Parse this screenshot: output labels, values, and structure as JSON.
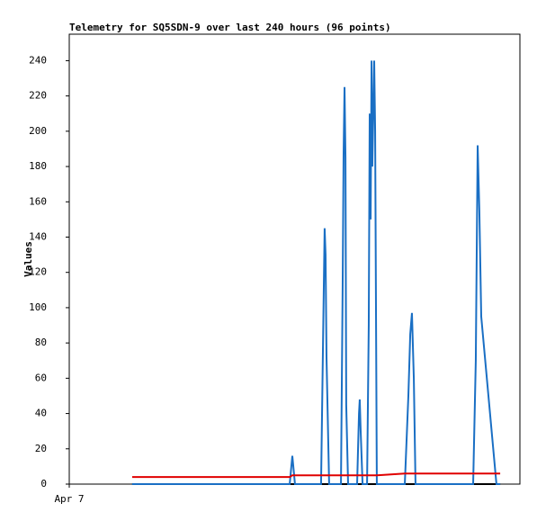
{
  "chart_data": {
    "type": "line",
    "title": "Telemetry for SQ5SDN-9 over last 240 hours (96 points)",
    "ylabel": "Values",
    "x": [
      33.5,
      117.4,
      118.8,
      120.2,
      134.1,
      136.0,
      136.5,
      137.0,
      138.4,
      144.7,
      145.6,
      146.1,
      146.6,
      147.1,
      147.5,
      148.5,
      153.3,
      154.3,
      154.7,
      155.2,
      156.2,
      158.6,
      159.5,
      160.0,
      160.5,
      161.0,
      161.4,
      162.4,
      162.9,
      163.8,
      178.7,
      180.6,
      181.6,
      182.5,
      183.5,
      184.4,
      215.1,
      216.5,
      217.5,
      218.4,
      219.4,
      227.5,
      229.5
    ],
    "series": [
      {
        "color": "#000000",
        "values": [
          0,
          0,
          0,
          0,
          0,
          0,
          0,
          0,
          0,
          0,
          0,
          0,
          0,
          0,
          0,
          0,
          0,
          0,
          0,
          0,
          0,
          0,
          0,
          0,
          0,
          0,
          0,
          0,
          0,
          0,
          0,
          0,
          0,
          0,
          0,
          0,
          0,
          0,
          0,
          0,
          0,
          0,
          0
        ]
      },
      {
        "color": "#1a6fc4",
        "values": [
          0,
          0,
          16,
          0,
          0,
          145,
          130,
          72,
          0,
          0,
          112,
          187,
          225,
          185,
          45,
          0,
          0,
          40,
          48,
          30,
          0,
          0,
          90,
          210,
          150,
          240,
          180,
          240,
          200,
          0,
          0,
          50,
          85,
          97,
          60,
          0,
          0,
          70,
          192,
          155,
          95,
          0,
          0
        ]
      },
      {
        "color": "#e00000",
        "values": [
          4,
          4,
          5,
          5,
          5,
          5,
          5,
          5,
          5,
          5,
          5,
          5,
          5,
          5,
          5,
          5,
          5,
          5,
          5,
          5,
          5,
          5,
          5,
          5,
          5,
          5,
          5,
          5,
          5,
          5,
          6,
          6,
          6,
          6,
          6,
          6,
          6,
          6,
          6,
          6,
          6,
          6,
          6
        ]
      }
    ],
    "xlim": [
      0,
      240
    ],
    "xticks": [
      {
        "value": 0,
        "label": "Apr 7"
      }
    ],
    "ylim": [
      0,
      255
    ],
    "yticks": [
      0,
      20,
      40,
      60,
      80,
      100,
      120,
      140,
      160,
      180,
      200,
      220,
      240
    ],
    "grid": false
  }
}
